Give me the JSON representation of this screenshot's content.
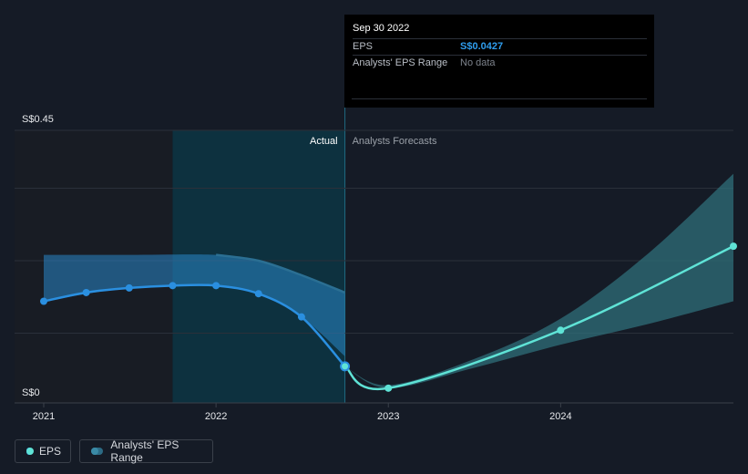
{
  "tooltip": {
    "date": "Sep 30 2022",
    "eps_label": "EPS",
    "eps_value": "S$0.0427",
    "range_label": "Analysts' EPS Range",
    "range_value": "No data"
  },
  "legend": {
    "eps": "EPS",
    "range": "Analysts' EPS Range"
  },
  "colors": {
    "actual_line": "#2a8fe0",
    "forecast_line": "#5fe3d6",
    "band": "#2f6f7a",
    "actual_highlight": "#0b3a48"
  },
  "chart_data": {
    "type": "line",
    "ylim": [
      0,
      0.45
    ],
    "y_tick_labels": [
      "S$0",
      "S$0.45"
    ],
    "x_tick_labels": [
      "2021",
      "2022",
      "2023",
      "2024"
    ],
    "region_labels": {
      "actual": "Actual",
      "forecast": "Analysts Forecasts"
    },
    "series": [
      {
        "name": "EPS",
        "segment": "actual",
        "x": [
          "2020-12-31",
          "2021-03-31",
          "2021-06-30",
          "2021-09-30",
          "2021-12-31",
          "2022-03-31",
          "2022-06-30",
          "2022-09-30"
        ],
        "y": [
          0.155,
          0.17,
          0.178,
          0.182,
          0.182,
          0.168,
          0.128,
          0.0427
        ]
      },
      {
        "name": "EPS",
        "segment": "forecast",
        "x": [
          "2022-09-30",
          "2022-12-31",
          "2023-12-31",
          "2024-12-31"
        ],
        "y": [
          0.0427,
          0.005,
          0.105,
          0.25
        ]
      },
      {
        "name": "Analysts' EPS Range",
        "segment": "past",
        "x": [
          "2020-12-31",
          "2021-06-30",
          "2021-12-31",
          "2022-03-31",
          "2022-06-30",
          "2022-09-30"
        ],
        "high": [
          0.235,
          0.235,
          0.235,
          0.225,
          0.2,
          0.17
        ],
        "low": [
          0.155,
          0.178,
          0.182,
          0.168,
          0.128,
          0.06
        ]
      },
      {
        "name": "Analysts' EPS Range",
        "segment": "forecast",
        "x": [
          "2022-09-30",
          "2022-12-31",
          "2023-06-30",
          "2023-12-31",
          "2024-06-30",
          "2024-12-31"
        ],
        "high": [
          0.0427,
          0.01,
          0.055,
          0.125,
          0.235,
          0.375
        ],
        "low": [
          0.0427,
          0.005,
          0.04,
          0.08,
          0.115,
          0.155
        ]
      }
    ]
  }
}
